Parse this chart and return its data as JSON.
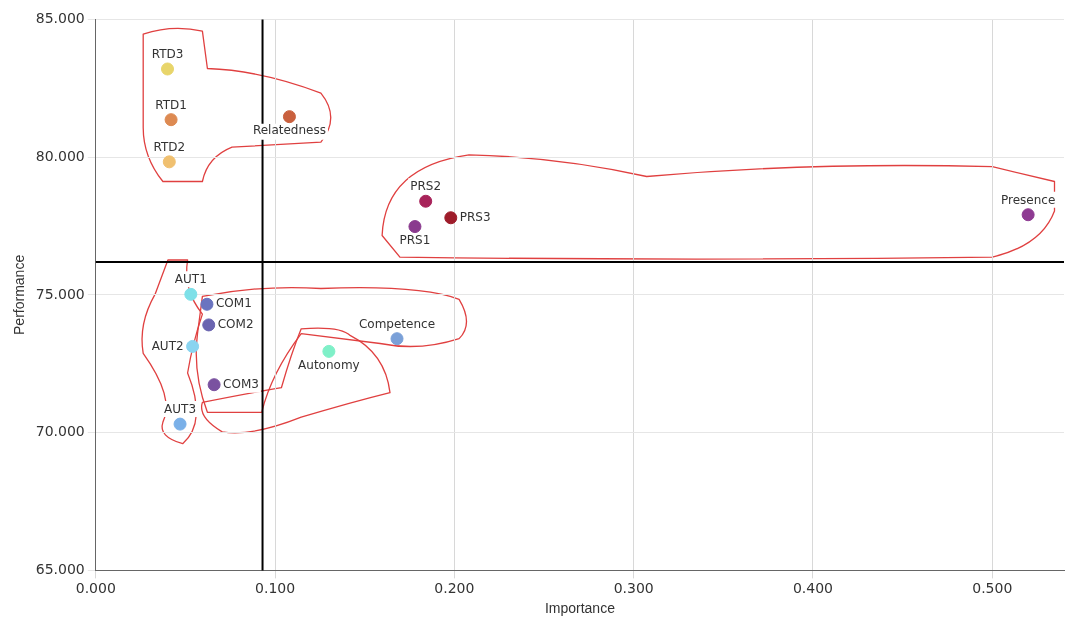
{
  "chart_data": {
    "type": "scatter",
    "xlabel": "Importance",
    "ylabel": "Performance",
    "x": [
      0.04,
      0.042,
      0.041,
      0.108,
      0.184,
      0.198,
      0.178,
      0.52,
      0.053,
      0.062,
      0.063,
      0.054,
      0.066,
      0.047,
      0.13,
      0.168
    ],
    "values": [
      83.2,
      81.36,
      79.83,
      81.47,
      78.4,
      77.8,
      77.48,
      77.91,
      75.02,
      74.66,
      73.91,
      73.13,
      71.74,
      70.31,
      72.95,
      73.41
    ],
    "colors": [
      "#e8d56a",
      "#dd8a52",
      "#f0c070",
      "#c9603e",
      "#a8235a",
      "#9e1c2a",
      "#8a3a8e",
      "#8e3a92",
      "#7de0e8",
      "#6a74c0",
      "#6a64b0",
      "#8ad4f0",
      "#7a52a0",
      "#7ab0e8",
      "#7ff0c8",
      "#7aa0d8"
    ],
    "annotations": [
      {
        "text": "RTD3",
        "x": 0.04,
        "y": 83.2
      },
      {
        "text": "RTD1",
        "x": 0.042,
        "y": 81.36
      },
      {
        "text": "RTD2",
        "x": 0.041,
        "y": 79.83
      },
      {
        "text": "Relatedness",
        "x": 0.108,
        "y": 81.47
      },
      {
        "text": "PRS2",
        "x": 0.184,
        "y": 78.4
      },
      {
        "text": "PRS3",
        "x": 0.198,
        "y": 77.8
      },
      {
        "text": "PRS1",
        "x": 0.178,
        "y": 77.48
      },
      {
        "text": "Presence",
        "x": 0.52,
        "y": 77.91
      },
      {
        "text": "AUT1",
        "x": 0.053,
        "y": 75.02
      },
      {
        "text": "COM1",
        "x": 0.062,
        "y": 74.66
      },
      {
        "text": "COM2",
        "x": 0.063,
        "y": 73.91
      },
      {
        "text": "AUT2",
        "x": 0.054,
        "y": 73.13
      },
      {
        "text": "COM3",
        "x": 0.066,
        "y": 71.74
      },
      {
        "text": "AUT3",
        "x": 0.047,
        "y": 70.31
      },
      {
        "text": "Autonomy",
        "x": 0.13,
        "y": 72.95
      },
      {
        "text": "Competence",
        "x": 0.168,
        "y": 73.41
      }
    ],
    "xlim": [
      0,
      0.54
    ],
    "ylim": [
      65,
      85
    ],
    "xticks": [
      {
        "value": 0,
        "label": "0.000"
      },
      {
        "value": 0.1,
        "label": "0.100"
      },
      {
        "value": 0.2,
        "label": "0.200"
      },
      {
        "value": 0.3,
        "label": "0.300"
      },
      {
        "value": 0.4,
        "label": "0.400"
      },
      {
        "value": 0.5,
        "label": "0.500"
      }
    ],
    "yticks": [
      {
        "value": 65,
        "label": "65.000"
      },
      {
        "value": 70,
        "label": "70.000"
      },
      {
        "value": 75,
        "label": "75.000"
      },
      {
        "value": 80,
        "label": "80.000"
      },
      {
        "value": 85,
        "label": "85.000"
      }
    ],
    "ref_lines": [
      {
        "axis": "x",
        "value": 0.093,
        "color": "#000000"
      },
      {
        "axis": "y",
        "value": 76.19,
        "color": "#000000"
      }
    ],
    "grid": true,
    "legend": false,
    "marker": "circle"
  }
}
